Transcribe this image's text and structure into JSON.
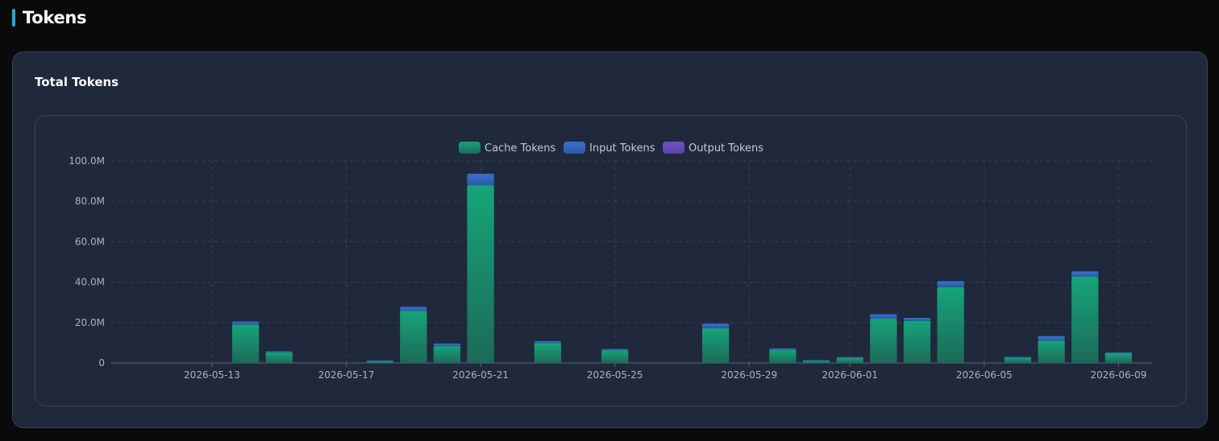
{
  "section": {
    "title": "Tokens"
  },
  "card": {
    "title": "Total Tokens"
  },
  "colors": {
    "cache": "#129c72",
    "input": "#3466c2",
    "output": "#6a4fc2",
    "accent": "#22a9d9"
  },
  "chart_data": {
    "type": "bar",
    "stacked": true,
    "title": "",
    "xlabel": "",
    "ylabel": "",
    "ylim": [
      0,
      100000000
    ],
    "yticks": [
      {
        "value": 0,
        "label": "0"
      },
      {
        "value": 20000000,
        "label": "20.0M"
      },
      {
        "value": 40000000,
        "label": "40.0M"
      },
      {
        "value": 60000000,
        "label": "60.0M"
      },
      {
        "value": 80000000,
        "label": "80.0M"
      },
      {
        "value": 100000000,
        "label": "100.0M"
      }
    ],
    "xrange": [
      "2026-05-10",
      "2026-06-10"
    ],
    "xticks": [
      "2026-05-13",
      "2026-05-17",
      "2026-05-21",
      "2026-05-25",
      "2026-05-29",
      "2026-06-01",
      "2026-06-05",
      "2026-06-09"
    ],
    "grid": true,
    "legend_position": "top-center",
    "categories": [
      "2026-05-14",
      "2026-05-15",
      "2026-05-18",
      "2026-05-19",
      "2026-05-20",
      "2026-05-21",
      "2026-05-23",
      "2026-05-25",
      "2026-05-28",
      "2026-05-30",
      "2026-05-31",
      "2026-06-01",
      "2026-06-02",
      "2026-06-03",
      "2026-06-04",
      "2026-06-06",
      "2026-06-07",
      "2026-06-08",
      "2026-06-09"
    ],
    "series": [
      {
        "name": "Cache Tokens",
        "color": "#129c72",
        "values": [
          19000000,
          5300000,
          1000000,
          25800000,
          8300000,
          88000000,
          9800000,
          6200000,
          17200000,
          6500000,
          1200000,
          2600000,
          21900000,
          20800000,
          37500000,
          2800000,
          11000000,
          42800000,
          4900000
        ]
      },
      {
        "name": "Input Tokens",
        "color": "#3466c2",
        "values": [
          1500000,
          500000,
          200000,
          2000000,
          1300000,
          5700000,
          1000000,
          700000,
          2200000,
          700000,
          200000,
          300000,
          2200000,
          1500000,
          3000000,
          200000,
          2300000,
          2500000,
          400000
        ]
      },
      {
        "name": "Output Tokens",
        "color": "#6a4fc2",
        "values": [
          0,
          0,
          0,
          0,
          0,
          0,
          0,
          0,
          0,
          0,
          0,
          0,
          0,
          0,
          0,
          0,
          0,
          0,
          0
        ]
      }
    ]
  }
}
